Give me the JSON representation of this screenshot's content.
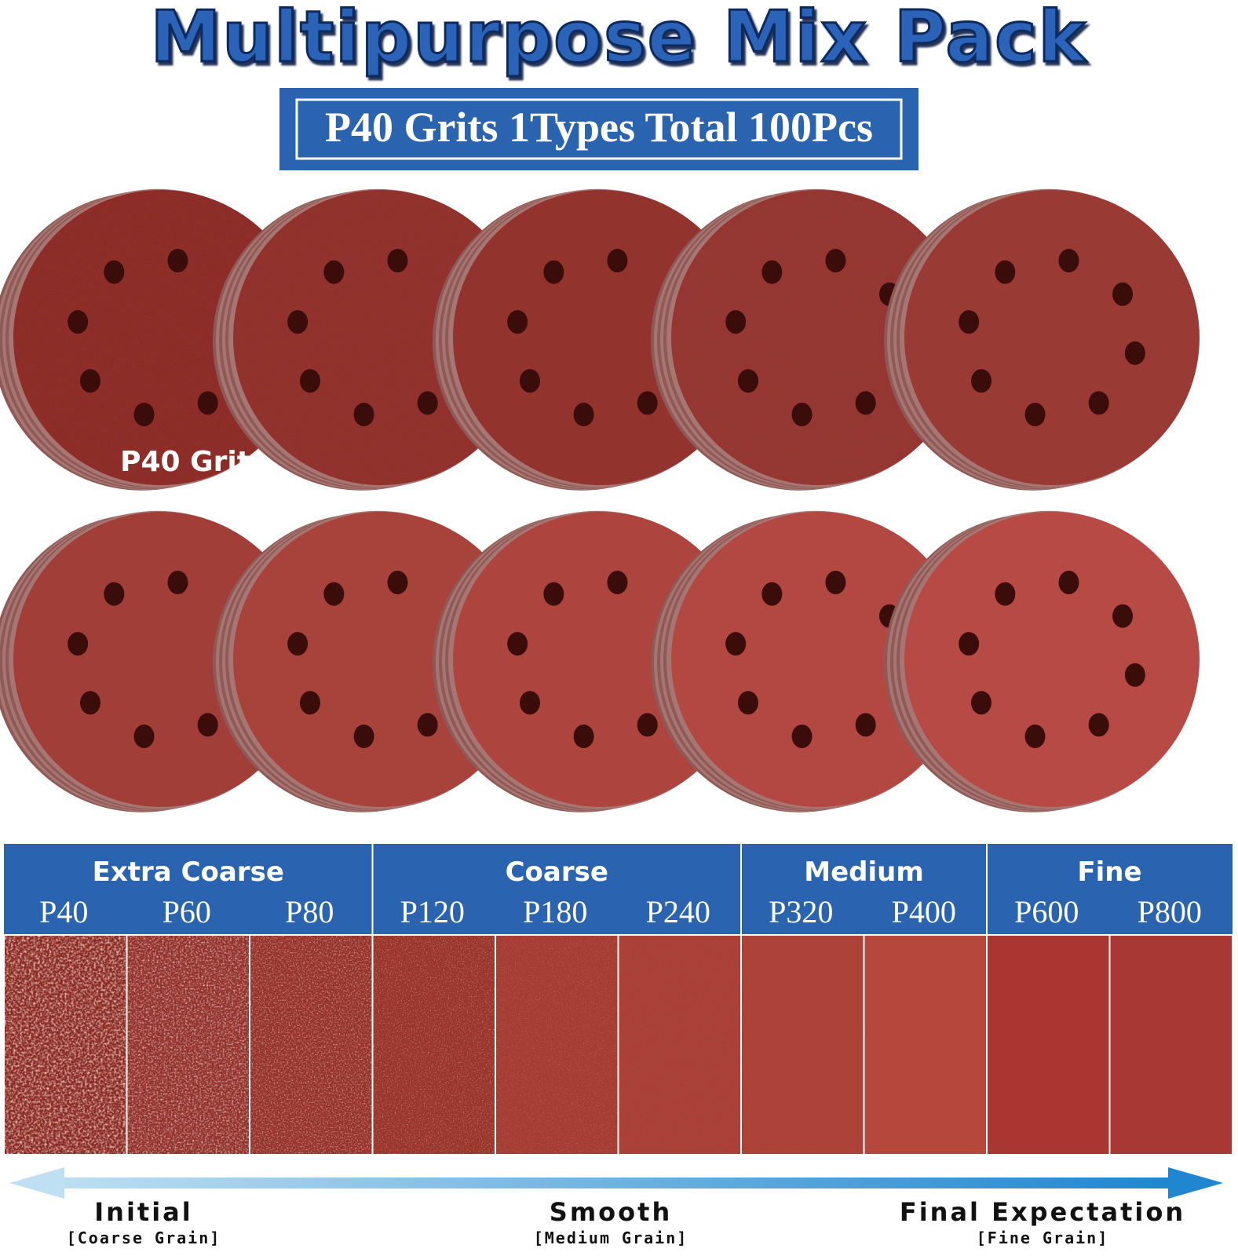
{
  "header": {
    "title": "Multipurpose Mix Pack",
    "subtitle": "P40 Grits 1Types Total 100Pcs"
  },
  "disc_label": "P40 Grit",
  "grit_groups": [
    {
      "name": "Extra Coarse",
      "grits": [
        "P40",
        "P60",
        "P80"
      ]
    },
    {
      "name": "Coarse",
      "grits": [
        "P120",
        "P180",
        "P240"
      ]
    },
    {
      "name": "Medium",
      "grits": [
        "P320",
        "P400"
      ]
    },
    {
      "name": "Fine",
      "grits": [
        "P600",
        "P800"
      ]
    }
  ],
  "progression": [
    {
      "label": "Initial",
      "note": "[Coarse Grain]"
    },
    {
      "label": "Smooth",
      "note": "[Medium Grain]"
    },
    {
      "label": "Final Expectation",
      "note": "[Fine Grain]"
    }
  ]
}
